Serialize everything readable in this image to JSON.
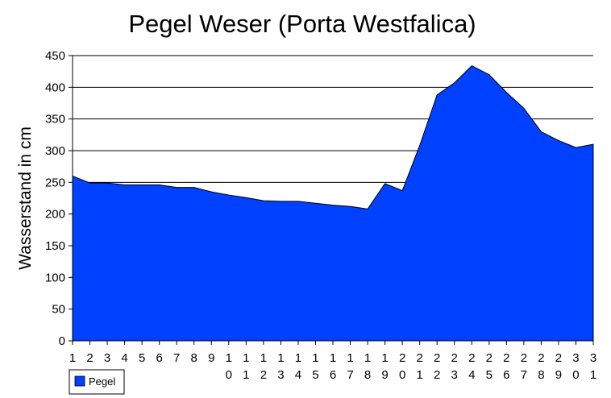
{
  "chart_data": {
    "type": "area",
    "title": "Pegel Weser (Porta Westfalica)",
    "xlabel": "",
    "ylabel": "Wasserstand in cm",
    "x": [
      1,
      2,
      3,
      4,
      5,
      6,
      7,
      8,
      9,
      10,
      11,
      12,
      13,
      14,
      15,
      16,
      17,
      18,
      19,
      20,
      21,
      22,
      23,
      24,
      25,
      26,
      27,
      28,
      29,
      30,
      31
    ],
    "x_tick_labels": [
      "1",
      "2",
      "3",
      "4",
      "5",
      "6",
      "7",
      "8",
      "9",
      "10",
      "11",
      "12",
      "13",
      "14",
      "15",
      "16",
      "17",
      "18",
      "19",
      "20",
      "21",
      "22",
      "23",
      "24",
      "25",
      "26",
      "27",
      "28",
      "29",
      "30",
      "31"
    ],
    "series": [
      {
        "name": "Pegel",
        "color": "#0040ff",
        "values": [
          260,
          249,
          249,
          246,
          246,
          246,
          242,
          242,
          235,
          230,
          226,
          221,
          220,
          220,
          217,
          214,
          212,
          208,
          248,
          237,
          308,
          388,
          407,
          434,
          420,
          392,
          367,
          330,
          316,
          305,
          310
        ]
      }
    ],
    "ylim": [
      0,
      450
    ],
    "y_ticks": [
      0,
      50,
      100,
      150,
      200,
      250,
      300,
      350,
      400,
      450
    ],
    "grid": true,
    "legend_position": "bottom-left"
  }
}
